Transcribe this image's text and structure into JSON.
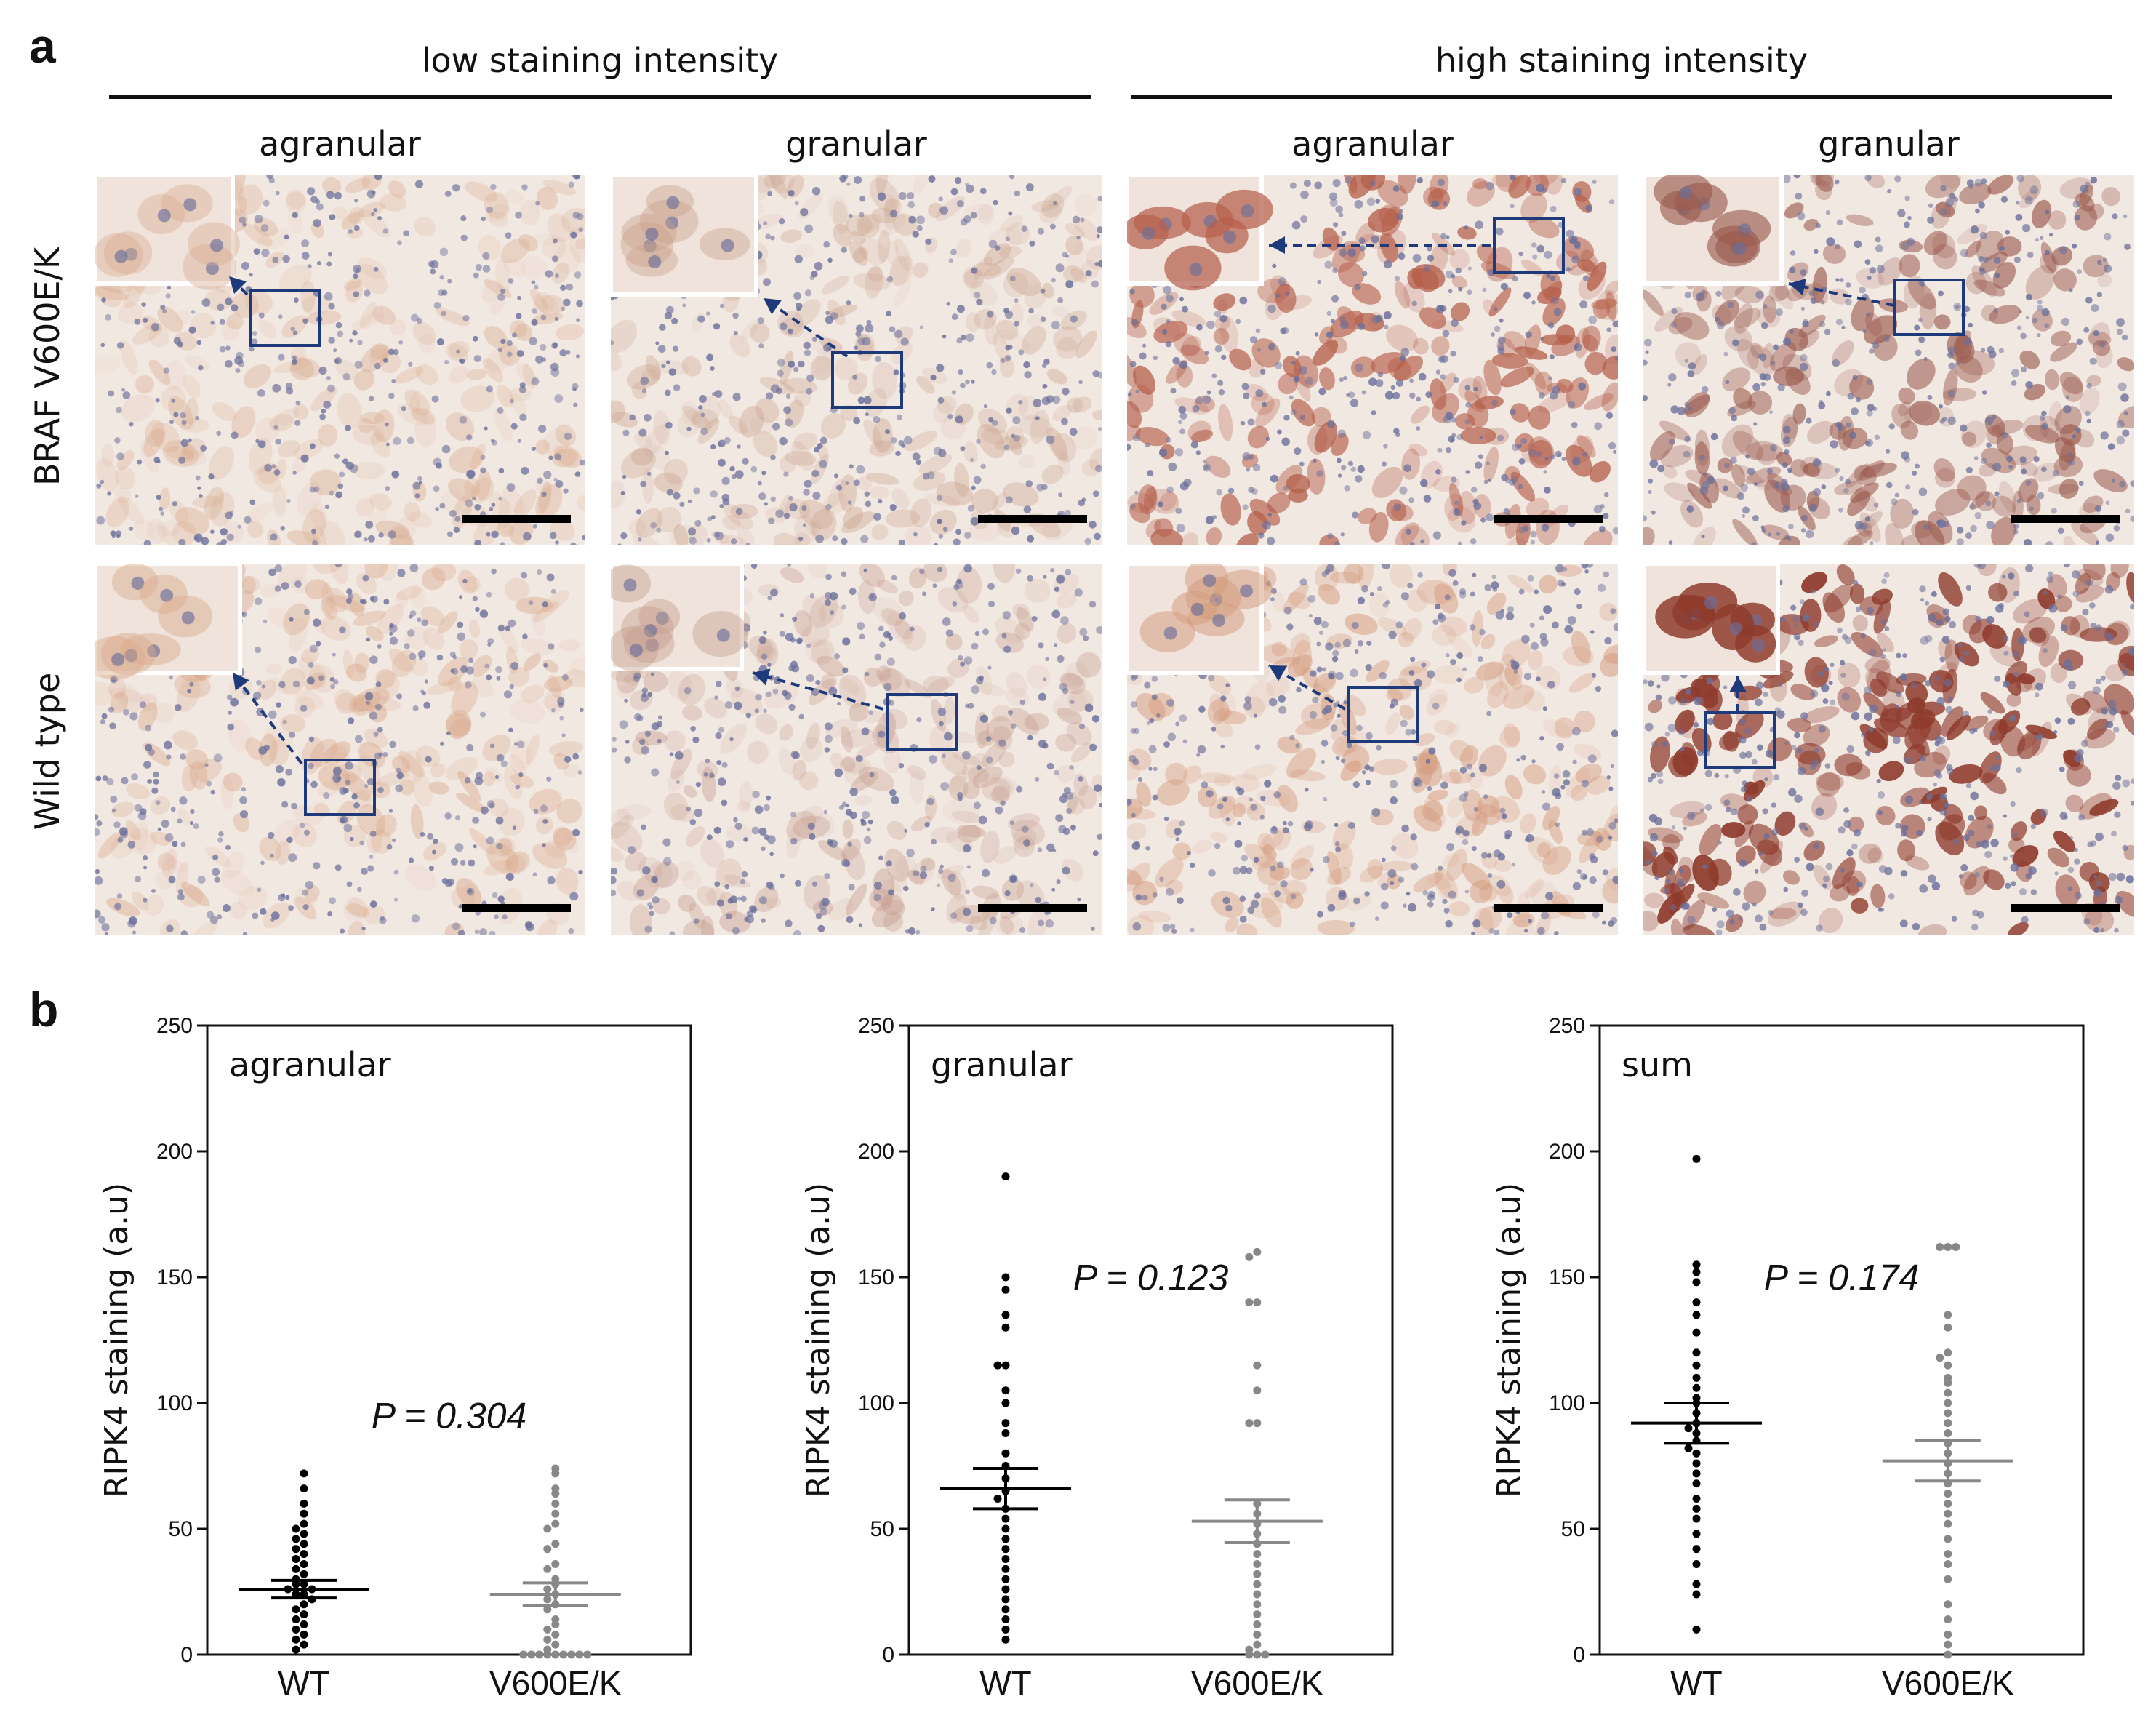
{
  "panel_a": {
    "letter": "a",
    "groups": [
      "low staining intensity",
      "high staining intensity"
    ],
    "columns": [
      "agranular",
      "granular",
      "agranular",
      "granular"
    ],
    "rows": [
      "BRAF V600E/K",
      "Wild type"
    ],
    "tiles": [
      {
        "row": 0,
        "col": 0,
        "intensity": 0.2,
        "tone": "#d8ab8e"
      },
      {
        "row": 0,
        "col": 1,
        "intensity": 0.18,
        "tone": "#c9a08a"
      },
      {
        "row": 0,
        "col": 2,
        "intensity": 0.7,
        "tone": "#b5604c"
      },
      {
        "row": 0,
        "col": 3,
        "intensity": 0.55,
        "tone": "#9a5a4e"
      },
      {
        "row": 1,
        "col": 0,
        "intensity": 0.25,
        "tone": "#d9a88a"
      },
      {
        "row": 1,
        "col": 1,
        "intensity": 0.2,
        "tone": "#c49a8a"
      },
      {
        "row": 1,
        "col": 2,
        "intensity": 0.35,
        "tone": "#d49a7c"
      },
      {
        "row": 1,
        "col": 3,
        "intensity": 0.9,
        "tone": "#8e3a2c"
      }
    ],
    "colors": {
      "box": "#1f3a7a",
      "arrow": "#1f3a7a",
      "scale_bar": "#000000",
      "background": "#f2e8e2"
    }
  },
  "panel_b": {
    "letter": "b",
    "chart_data": [
      {
        "type": "scatter",
        "title": "agranular",
        "ylabel": "RIPK4 staining (a.u)",
        "ylim": [
          0,
          250
        ],
        "yticks": [
          0,
          50,
          100,
          150,
          200,
          250
        ],
        "categories": [
          "WT",
          "V600E/K"
        ],
        "p_value": "P = 0.304",
        "series": [
          {
            "values": [
              72,
              66,
              60,
              56,
              52,
              50,
              48,
              46,
              44,
              42,
              40,
              38,
              36,
              34,
              32,
              30,
              28,
              28,
              26,
              26,
              24,
              24,
              22,
              20,
              18,
              16,
              14,
              12,
              10,
              8,
              6,
              4,
              2
            ],
            "mean": 26,
            "sem": 3.5,
            "color": "#000000"
          },
          {
            "values": [
              74,
              72,
              66,
              64,
              60,
              56,
              52,
              50,
              44,
              42,
              36,
              34,
              30,
              28,
              26,
              24,
              22,
              20,
              18,
              14,
              12,
              10,
              8,
              6,
              4,
              2,
              0,
              0,
              0,
              0,
              0,
              0,
              0,
              0,
              0
            ],
            "mean": 24,
            "sem": 4.5,
            "color": "#888888"
          }
        ]
      },
      {
        "type": "scatter",
        "title": "granular",
        "ylabel": "RIPK4 staining (a.u)",
        "ylim": [
          0,
          250
        ],
        "yticks": [
          0,
          50,
          100,
          150,
          200,
          250
        ],
        "categories": [
          "WT",
          "V600E/K"
        ],
        "p_value": "P = 0.123",
        "series": [
          {
            "values": [
              190,
              150,
              145,
              135,
              130,
              115,
              115,
              105,
              100,
              92,
              88,
              80,
              75,
              70,
              65,
              62,
              58,
              54,
              50,
              46,
              42,
              38,
              34,
              30,
              26,
              22,
              18,
              14,
              10,
              6
            ],
            "mean": 66,
            "sem": 8,
            "color": "#000000"
          },
          {
            "values": [
              160,
              158,
              140,
              140,
              115,
              105,
              92,
              92,
              60,
              56,
              52,
              48,
              44,
              40,
              36,
              32,
              28,
              24,
              20,
              16,
              12,
              8,
              4,
              2,
              0,
              0,
              0
            ],
            "mean": 53,
            "sem": 8.5,
            "color": "#888888"
          }
        ]
      },
      {
        "type": "scatter",
        "title": "sum",
        "ylabel": "RIPK4 staining (a.u)",
        "ylim": [
          0,
          250
        ],
        "yticks": [
          0,
          50,
          100,
          150,
          200,
          250
        ],
        "categories": [
          "WT",
          "V600E/K"
        ],
        "p_value": "P = 0.174",
        "series": [
          {
            "values": [
              197,
              155,
              152,
              148,
              140,
              135,
              128,
              120,
              115,
              110,
              106,
              102,
              100,
              96,
              92,
              90,
              88,
              85,
              82,
              80,
              76,
              72,
              68,
              62,
              58,
              54,
              48,
              42,
              36,
              28,
              24,
              10
            ],
            "mean": 92,
            "sem": 8,
            "color": "#000000"
          },
          {
            "values": [
              162,
              162,
              162,
              135,
              130,
              120,
              118,
              115,
              110,
              108,
              104,
              100,
              96,
              92,
              88,
              84,
              80,
              76,
              72,
              68,
              64,
              60,
              56,
              52,
              46,
              40,
              36,
              30,
              20,
              14,
              8,
              4,
              0
            ],
            "mean": 77,
            "sem": 8,
            "color": "#888888"
          }
        ]
      }
    ]
  }
}
